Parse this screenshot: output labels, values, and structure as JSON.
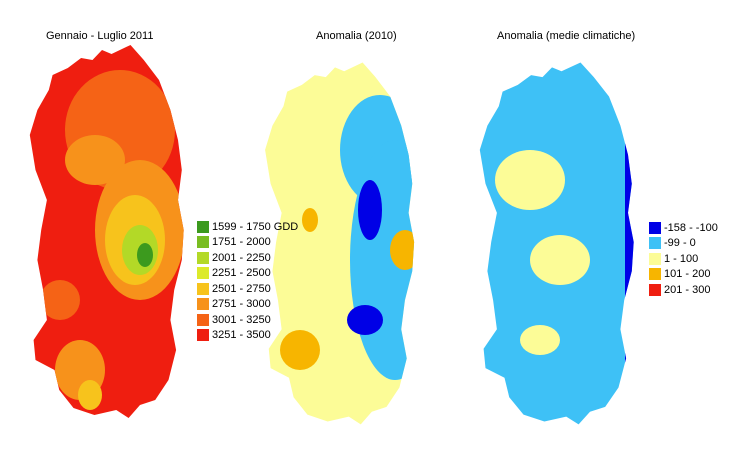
{
  "maps": [
    {
      "title": "Gennaio - Luglio 2011"
    },
    {
      "title": "Anomalia (2010)"
    },
    {
      "title": "Anomalia (medie climatiche)"
    }
  ],
  "legend_gdd": {
    "items": [
      {
        "label": "1599 - 1750 GDD",
        "color": "#3c9a1e"
      },
      {
        "label": "1751 - 2000",
        "color": "#79bd21"
      },
      {
        "label": "2001 - 2250",
        "color": "#b3d927"
      },
      {
        "label": "2251 - 2500",
        "color": "#dcea2a"
      },
      {
        "label": "2501 - 2750",
        "color": "#f7c31c"
      },
      {
        "label": "2751 - 3000",
        "color": "#f7921b"
      },
      {
        "label": "3001 - 3250",
        "color": "#f56316"
      },
      {
        "label": "3251 - 3500",
        "color": "#ef1e10"
      }
    ]
  },
  "legend_anomaly": {
    "items": [
      {
        "label": "-158 - -100",
        "color": "#0000e6"
      },
      {
        "label": "-99 - 0",
        "color": "#3ec1f6"
      },
      {
        "label": "1 - 100",
        "color": "#fcfc97"
      },
      {
        "label": "101 - 200",
        "color": "#f7b500"
      },
      {
        "label": "201 - 300",
        "color": "#ef1e10"
      }
    ]
  }
}
